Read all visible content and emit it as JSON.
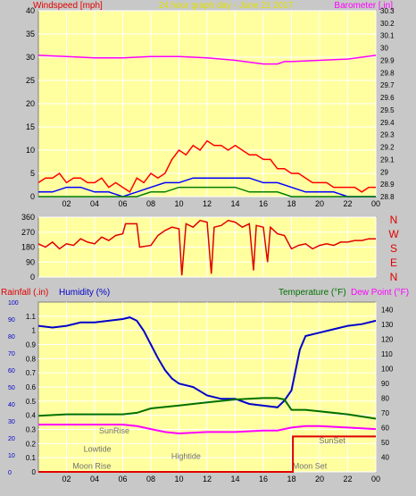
{
  "colors": {
    "plot_bg": "#ffffa0",
    "frame_bg": "#c8c8c8",
    "grid": "#ffffff",
    "wind_avg": "#0000ff",
    "wind_gust": "#ff0000",
    "wind_calm": "#008000",
    "barometer": "#ff00ff",
    "direction": "#e00000",
    "humidity": "#0000cc",
    "temperature": "#007000",
    "dewpoint": "#ff00ff",
    "rainfall": "#e00000",
    "astro_text": "#707070"
  },
  "top": {
    "left_title": "Windspeed [mph]",
    "center_title": "24 hour graph day - June 21 2017",
    "right_title": "Barometer [.in]"
  },
  "middle": {
    "compass": [
      "N",
      "W",
      "S",
      "E",
      "N"
    ]
  },
  "bottom": {
    "rain_label": "Rainfall (.in)",
    "humidity_label": "Humidity (%)",
    "temp_label": "Temperature (°F)",
    "dew_label": "Dew Point (°F)"
  },
  "chart_data": [
    {
      "type": "line",
      "title": "24 hour graph day - June 21 2017",
      "ylabel": "Windspeed [mph]",
      "y2label": "Barometer [.in]",
      "xlim": [
        0,
        24
      ],
      "x_ticks": [
        "02",
        "04",
        "06",
        "08",
        "10",
        "12",
        "14",
        "16",
        "18",
        "20",
        "22",
        "00"
      ],
      "ylim": [
        0,
        40
      ],
      "y_ticks": [
        "0",
        "5",
        "10",
        "15",
        "20",
        "25",
        "30",
        "35",
        "40"
      ],
      "y2lim": [
        28.8,
        30.3
      ],
      "y2_ticks": [
        "28.8",
        "28.9",
        "29",
        "29.1",
        "29.2",
        "29.3",
        "29.4",
        "29.5",
        "29.6",
        "29.7",
        "29.8",
        "29.9",
        "30",
        "30.1",
        "30.2",
        "30.3"
      ],
      "series": [
        {
          "kind": "gust",
          "axis": "y",
          "x": [
            0,
            0.5,
            1,
            1.5,
            2,
            2.5,
            3,
            3.5,
            4,
            4.5,
            5,
            5.5,
            6,
            6.5,
            7,
            7.5,
            8,
            8.5,
            9,
            9.5,
            10,
            10.5,
            11,
            11.5,
            12,
            12.5,
            13,
            13.5,
            14,
            14.5,
            15,
            15.5,
            16,
            16.5,
            17,
            17.5,
            18,
            18.5,
            19,
            19.5,
            20,
            20.5,
            21,
            21.5,
            22,
            22.5,
            23,
            23.5,
            24
          ],
          "values": [
            3,
            4,
            4,
            5,
            3,
            4,
            4,
            3,
            3,
            4,
            2,
            3,
            2,
            1,
            4,
            3,
            5,
            4,
            5,
            8,
            10,
            9,
            11,
            10,
            12,
            11,
            11,
            10,
            11,
            10,
            9,
            9,
            8,
            8,
            6,
            6,
            5,
            5,
            4,
            3,
            3,
            3,
            2,
            2,
            2,
            2,
            1,
            2,
            2
          ]
        },
        {
          "kind": "average",
          "axis": "y",
          "x": [
            0,
            1,
            2,
            3,
            4,
            5,
            6,
            7,
            8,
            9,
            10,
            11,
            12,
            13,
            14,
            15,
            16,
            17,
            18,
            19,
            20,
            21,
            22,
            23,
            24
          ],
          "values": [
            1,
            1,
            2,
            2,
            1,
            1,
            0,
            1,
            2,
            3,
            3,
            4,
            4,
            4,
            4,
            4,
            3,
            3,
            2,
            1,
            1,
            1,
            0,
            0,
            0
          ]
        },
        {
          "kind": "calm",
          "axis": "y",
          "x": [
            0,
            1,
            2,
            3,
            4,
            5,
            6,
            7,
            8,
            9,
            10,
            11,
            12,
            13,
            14,
            15,
            16,
            17,
            18,
            19,
            20,
            21,
            22,
            23,
            24
          ],
          "values": [
            0,
            0,
            0,
            0,
            0,
            0,
            0,
            0,
            1,
            1,
            2,
            2,
            2,
            2,
            2,
            1,
            1,
            1,
            0,
            0,
            0,
            0,
            0,
            0,
            0
          ]
        },
        {
          "kind": "barometer",
          "axis": "y2",
          "x": [
            0,
            2,
            4,
            6,
            8,
            10,
            12,
            14,
            16,
            17,
            17.5,
            18,
            20,
            22,
            24
          ],
          "values": [
            29.94,
            29.93,
            29.92,
            29.92,
            29.93,
            29.93,
            29.92,
            29.9,
            29.87,
            29.87,
            29.89,
            29.89,
            29.9,
            29.91,
            29.94
          ]
        }
      ]
    },
    {
      "type": "line",
      "ylabel": "Wind direction",
      "xlim": [
        0,
        24
      ],
      "x_ticks": [
        "02",
        "04",
        "06",
        "08",
        "10",
        "12",
        "14",
        "16",
        "18",
        "20",
        "22",
        "00"
      ],
      "ylim": [
        0,
        360
      ],
      "y_ticks": [
        "0",
        "90",
        "180",
        "270",
        "360"
      ],
      "series": [
        {
          "kind": "direction",
          "x": [
            0,
            0.5,
            1,
            1.5,
            2,
            2.5,
            3,
            3.5,
            4,
            4.5,
            5,
            5.5,
            6,
            6.2,
            7,
            7.2,
            8,
            8.5,
            9,
            9.5,
            10,
            10.2,
            10.5,
            11,
            11.5,
            12,
            12.3,
            12.5,
            13,
            13.5,
            14,
            14.5,
            15,
            15.3,
            15.5,
            16,
            16.3,
            16.5,
            17,
            17.5,
            18,
            18.5,
            19,
            19.5,
            20,
            20.5,
            21,
            21.5,
            22,
            22.5,
            23,
            23.5,
            24
          ],
          "values": [
            200,
            180,
            210,
            170,
            200,
            190,
            230,
            210,
            200,
            240,
            220,
            250,
            260,
            320,
            320,
            180,
            190,
            250,
            280,
            300,
            290,
            10,
            320,
            300,
            340,
            330,
            20,
            300,
            310,
            340,
            330,
            300,
            320,
            40,
            310,
            300,
            90,
            300,
            260,
            250,
            170,
            190,
            200,
            170,
            190,
            200,
            190,
            210,
            210,
            220,
            220,
            230,
            230
          ]
        }
      ]
    },
    {
      "type": "line",
      "ylabel": "Rainfall (.in) / Humidity (%)",
      "y2label": "Temperature (°F) / Dew Point (°F)",
      "xlim": [
        0,
        24
      ],
      "x_ticks": [
        "02",
        "04",
        "06",
        "08",
        "10",
        "12",
        "14",
        "16",
        "18",
        "20",
        "22",
        "00"
      ],
      "rain_ylim": [
        0,
        1.2
      ],
      "rain_ticks": [
        "0",
        "0.1",
        "0.2",
        "0.3",
        "0.4",
        "0.5",
        "0.6",
        "0.7",
        "0.8",
        "0.9",
        "1",
        "1.1"
      ],
      "humidity_ylim": [
        0,
        100
      ],
      "humidity_ticks": [
        "0",
        "10",
        "20",
        "30",
        "40",
        "50",
        "60",
        "70",
        "80",
        "90",
        "100"
      ],
      "temp_ylim": [
        30,
        145
      ],
      "temp_ticks": [
        "40",
        "50",
        "60",
        "70",
        "80",
        "90",
        "100",
        "110",
        "120",
        "130",
        "140"
      ],
      "series": [
        {
          "name": "Humidity (%)",
          "axis": "humidity",
          "x": [
            0,
            1,
            2,
            3,
            4,
            5,
            6,
            6.5,
            7,
            7.5,
            8,
            8.5,
            9,
            9.5,
            10,
            11,
            12,
            13,
            14,
            15,
            16,
            17,
            17.5,
            18,
            18.3,
            18.6,
            19,
            20,
            21,
            22,
            23,
            24
          ],
          "values": [
            86,
            85,
            86,
            88,
            88,
            89,
            90,
            91,
            89,
            83,
            75,
            67,
            60,
            55,
            52,
            50,
            45,
            43,
            43,
            40,
            39,
            38,
            42,
            48,
            60,
            72,
            80,
            82,
            84,
            86,
            87,
            89
          ]
        },
        {
          "name": "Temperature (°F)",
          "axis": "temp",
          "x": [
            0,
            2,
            4,
            6,
            7,
            8,
            10,
            12,
            14,
            16,
            17,
            17.5,
            18,
            19,
            20,
            22,
            24
          ],
          "values": [
            68,
            69,
            69,
            69,
            70,
            73,
            75,
            77,
            79,
            80,
            80,
            79,
            72,
            72,
            71,
            69,
            66
          ]
        },
        {
          "name": "Dew Point (°F)",
          "axis": "temp",
          "x": [
            0,
            2,
            4,
            6,
            7,
            8,
            9,
            10,
            12,
            14,
            16,
            17,
            18,
            19,
            20,
            22,
            24
          ],
          "values": [
            62,
            62,
            62,
            62,
            61,
            59,
            57,
            56,
            57,
            57,
            58,
            58,
            60,
            61,
            61,
            60,
            59
          ]
        },
        {
          "name": "Rainfall (.in)",
          "axis": "rain",
          "x": [
            0,
            18.1,
            18.1,
            24
          ],
          "values": [
            0,
            0,
            0.25,
            0.25
          ]
        }
      ],
      "annotations": [
        {
          "label": "SunRise",
          "x": 5.4,
          "level": 0.26
        },
        {
          "label": "Lowtide",
          "x": 4.2,
          "level": 0.13
        },
        {
          "label": "Moon Rise",
          "x": 3.8,
          "level": 0.01
        },
        {
          "label": "Hightide",
          "x": 10.5,
          "level": 0.08
        },
        {
          "label": "Moon Set",
          "x": 19.3,
          "level": 0.01
        },
        {
          "label": "SunSet",
          "x": 20.9,
          "level": 0.19
        }
      ]
    }
  ]
}
